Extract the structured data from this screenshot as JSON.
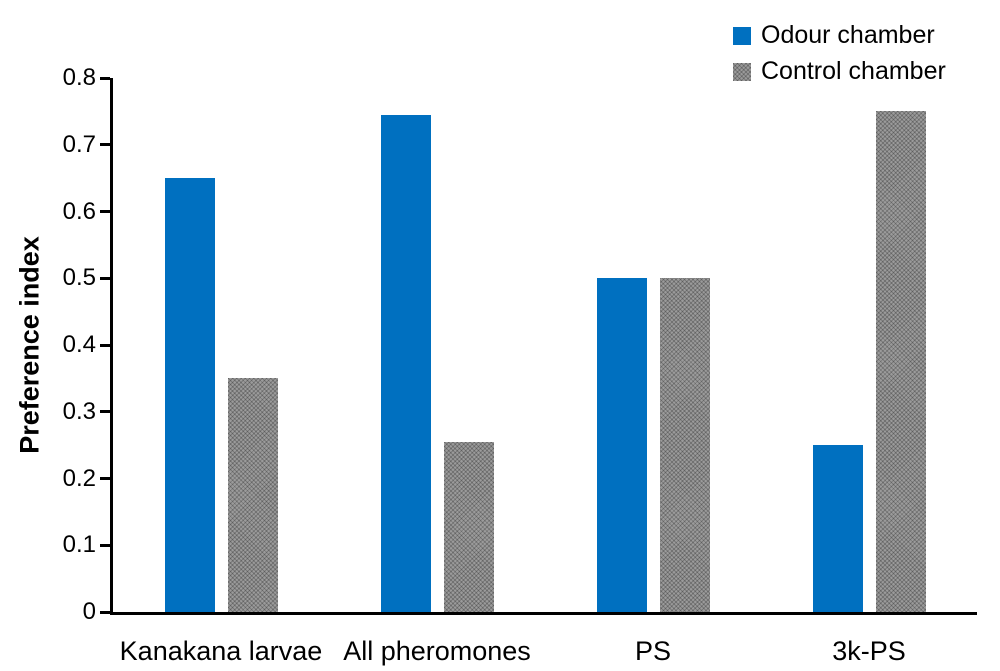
{
  "chart_data": {
    "type": "bar",
    "title": "",
    "xlabel": "",
    "ylabel": "Preference index",
    "categories": [
      "Kanakana larvae",
      "All pheromones",
      "PS",
      "3k-PS"
    ],
    "series": [
      {
        "name": "Odour chamber",
        "color": "#0070C0",
        "fill": "solid",
        "values": [
          0.65,
          0.745,
          0.5,
          0.25
        ]
      },
      {
        "name": "Control chamber",
        "color": "#9B9B9B",
        "fill": "dotted-texture",
        "values": [
          0.35,
          0.255,
          0.5,
          0.75
        ]
      }
    ],
    "ylim": [
      0,
      0.8
    ],
    "ytick_labels": [
      "0",
      "0.1",
      "0.2",
      "0.3",
      "0.4",
      "0.5",
      "0.6",
      "0.7",
      "0.8"
    ],
    "grid": false,
    "legend_position": "top-right",
    "axis_color": "#000000"
  }
}
